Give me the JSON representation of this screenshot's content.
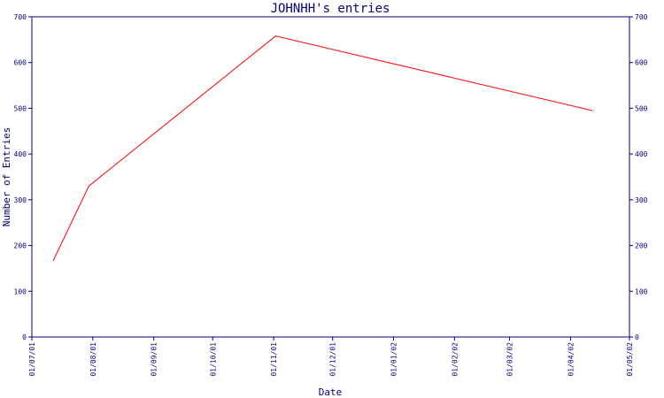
{
  "chart_data": {
    "type": "line",
    "title": "JOHNHH's entries",
    "xlabel": "Date",
    "ylabel": "Number of Entries",
    "x_ticks": [
      "01/07/01",
      "01/08/01",
      "01/09/01",
      "01/10/01",
      "01/11/01",
      "01/12/01",
      "01/01/02",
      "01/02/02",
      "01/03/02",
      "01/04/02",
      "01/05/02"
    ],
    "y_ticks": [
      0,
      100,
      200,
      300,
      400,
      500,
      600,
      700
    ],
    "ylim": [
      0,
      700
    ],
    "xlim": [
      "2001-07-01",
      "2002-05-01"
    ],
    "grid": false,
    "series": [
      {
        "color": "#ff0000",
        "points": [
          {
            "x": "2001-07-12",
            "y": 168
          },
          {
            "x": "2001-07-30",
            "y": 330
          },
          {
            "x": "2001-11-02",
            "y": 658
          },
          {
            "x": "2002-04-12",
            "y": 495
          }
        ]
      }
    ]
  },
  "colors": {
    "axis": "#000080",
    "line": "#ff0000",
    "background": "#ffffff"
  }
}
